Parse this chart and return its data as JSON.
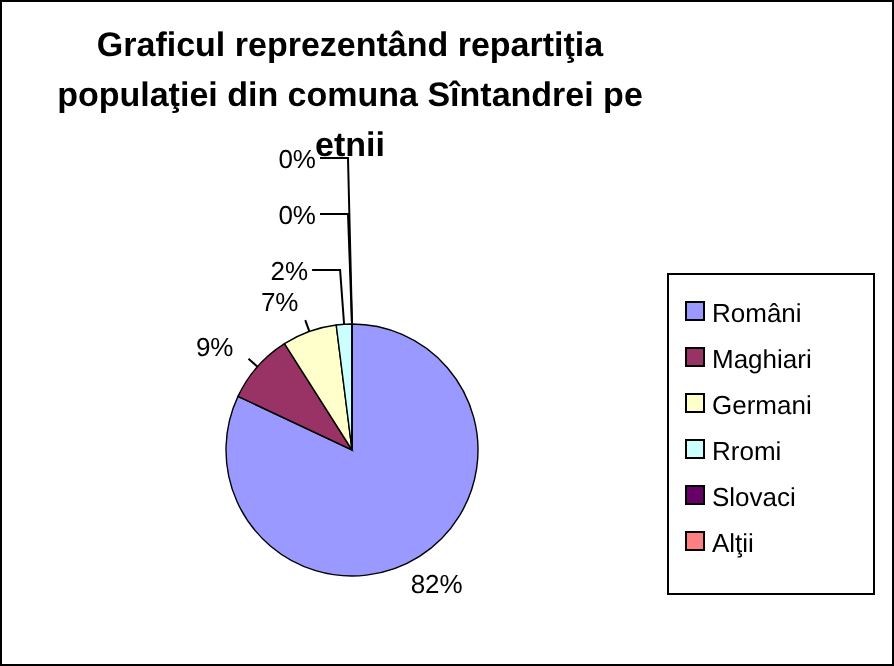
{
  "chart_data": {
    "type": "pie",
    "title": "Graficul reprezentând repartiţia populaţiei din comuna Sîntandrei pe etnii",
    "categories": [
      "Români",
      "Maghiari",
      "Germani",
      "Rromi",
      "Slovaci",
      "Alţii"
    ],
    "values": [
      82,
      9,
      7,
      2,
      0,
      0
    ],
    "value_labels": [
      "82%",
      "9%",
      "7%",
      "2%",
      "0%",
      "0%"
    ],
    "colors": [
      "#9999ff",
      "#993366",
      "#ffffcc",
      "#ccffff",
      "#660066",
      "#ff8080"
    ],
    "legend": "right"
  }
}
